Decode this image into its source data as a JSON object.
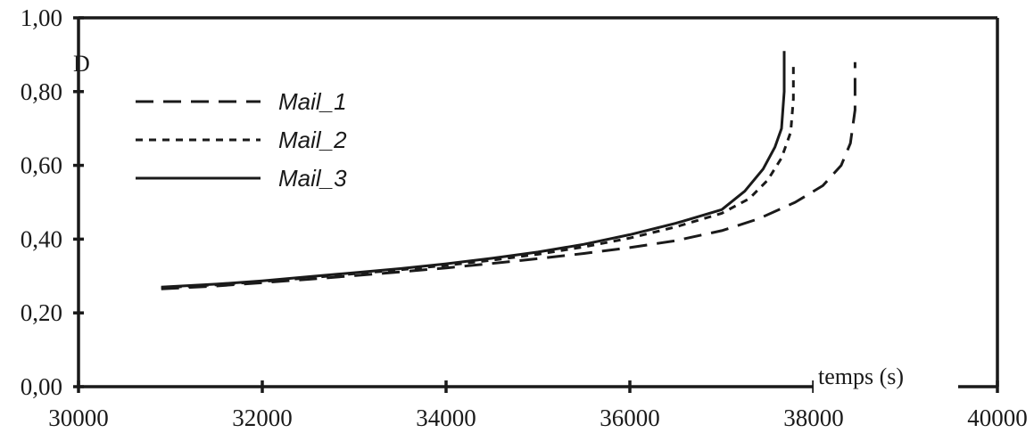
{
  "chart_data": {
    "type": "line",
    "title": "",
    "xlabel": "temps (s)",
    "ylabel": "D",
    "xlim": [
      30000,
      40000
    ],
    "ylim": [
      0,
      1
    ],
    "x_ticks": [
      "30000",
      "32000",
      "34000",
      "36000",
      "38000",
      "40000"
    ],
    "y_ticks": [
      "0,00",
      "0,20",
      "0,40",
      "0,60",
      "0,80",
      "1,00"
    ],
    "grid": false,
    "legend_position": "top-left",
    "series": [
      {
        "name": "Mail_1",
        "style": "long-dash",
        "x": [
          30900,
          31500,
          32000,
          32500,
          33000,
          33500,
          34000,
          34500,
          35000,
          35500,
          36000,
          36500,
          37000,
          37400,
          37800,
          38100,
          38300,
          38400,
          38450,
          38450
        ],
        "y": [
          0.265,
          0.273,
          0.282,
          0.291,
          0.301,
          0.311,
          0.322,
          0.334,
          0.347,
          0.361,
          0.377,
          0.396,
          0.423,
          0.455,
          0.5,
          0.545,
          0.6,
          0.66,
          0.75,
          0.88
        ]
      },
      {
        "name": "Mail_2",
        "style": "short-dash",
        "x": [
          30900,
          31500,
          32000,
          32500,
          33000,
          33500,
          34000,
          34500,
          35000,
          35500,
          36000,
          36500,
          37000,
          37300,
          37500,
          37650,
          37750,
          37780,
          37780
        ],
        "y": [
          0.268,
          0.276,
          0.285,
          0.295,
          0.306,
          0.317,
          0.329,
          0.343,
          0.359,
          0.379,
          0.403,
          0.433,
          0.47,
          0.51,
          0.56,
          0.62,
          0.69,
          0.78,
          0.88
        ]
      },
      {
        "name": "Mail_3",
        "style": "solid",
        "x": [
          30900,
          31500,
          32000,
          32500,
          33000,
          33500,
          34000,
          34500,
          35000,
          35500,
          36000,
          36500,
          37000,
          37250,
          37450,
          37580,
          37650,
          37680,
          37680
        ],
        "y": [
          0.27,
          0.278,
          0.287,
          0.298,
          0.309,
          0.32,
          0.333,
          0.348,
          0.365,
          0.386,
          0.412,
          0.443,
          0.48,
          0.53,
          0.59,
          0.65,
          0.7,
          0.8,
          0.91
        ]
      }
    ]
  }
}
